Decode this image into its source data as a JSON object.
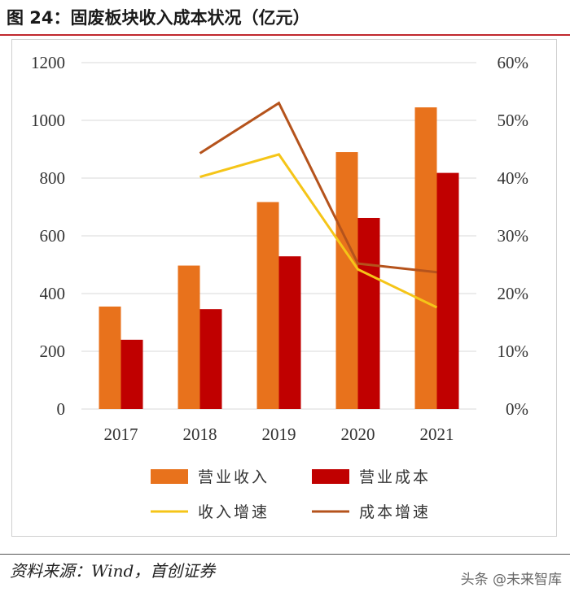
{
  "title": "图 24：固废板块收入成本状况（亿元）",
  "source": "资料来源：Wind，首创证券",
  "watermark": "头条 @未来智库",
  "chart_data": {
    "type": "bar+line",
    "categories": [
      "2017",
      "2018",
      "2019",
      "2020",
      "2021"
    ],
    "bar_series": [
      {
        "name": "营业收入",
        "color": "#e8721c",
        "values": [
          355,
          497,
          717,
          890,
          1045
        ]
      },
      {
        "name": "营业成本",
        "color": "#c00000",
        "values": [
          240,
          346,
          529,
          662,
          818
        ]
      }
    ],
    "line_series": [
      {
        "name": "收入增速",
        "color": "#f5c518",
        "values": [
          null,
          40.2,
          44.1,
          24.2,
          17.6
        ]
      },
      {
        "name": "成本增速",
        "color": "#b5531c",
        "values": [
          null,
          44.3,
          53.0,
          25.2,
          23.7
        ]
      }
    ],
    "y_left": {
      "min": 0,
      "max": 1200,
      "step": 200,
      "tick_labels": [
        "0",
        "200",
        "400",
        "600",
        "800",
        "1000",
        "1200"
      ]
    },
    "y_right": {
      "min": 0,
      "max": 60,
      "step": 10,
      "tick_labels": [
        "0%",
        "10%",
        "20%",
        "30%",
        "40%",
        "50%",
        "60%"
      ]
    },
    "gridlines": true,
    "legend": [
      "营业收入",
      "营业成本",
      "收入增速",
      "成本增速"
    ],
    "legend_position": "bottom"
  }
}
